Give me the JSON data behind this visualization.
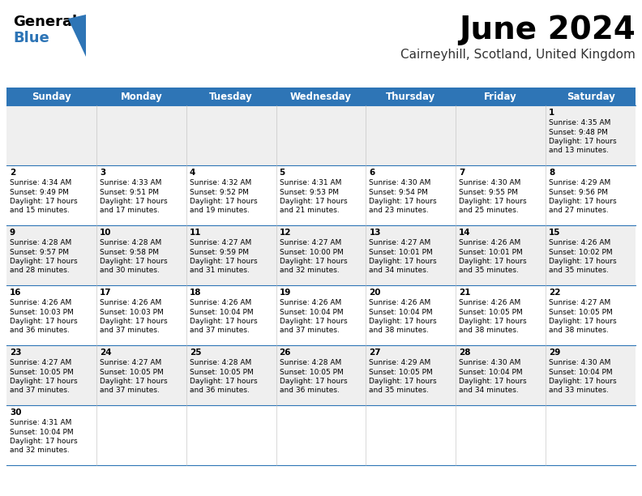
{
  "title": "June 2024",
  "subtitle": "Cairneyhill, Scotland, United Kingdom",
  "days_of_week": [
    "Sunday",
    "Monday",
    "Tuesday",
    "Wednesday",
    "Thursday",
    "Friday",
    "Saturday"
  ],
  "header_bg": "#2E75B6",
  "header_text": "#FFFFFF",
  "row_bg_even": "#EFEFEF",
  "row_bg_odd": "#FFFFFF",
  "border_color": "#2E75B6",
  "text_color": "#000000",
  "calendar_data": [
    [
      null,
      null,
      null,
      null,
      null,
      null,
      {
        "day": "1",
        "sunrise": "4:35 AM",
        "sunset": "9:48 PM",
        "daylight1": "17 hours",
        "daylight2": "and 13 minutes."
      }
    ],
    [
      {
        "day": "2",
        "sunrise": "4:34 AM",
        "sunset": "9:49 PM",
        "daylight1": "17 hours",
        "daylight2": "and 15 minutes."
      },
      {
        "day": "3",
        "sunrise": "4:33 AM",
        "sunset": "9:51 PM",
        "daylight1": "17 hours",
        "daylight2": "and 17 minutes."
      },
      {
        "day": "4",
        "sunrise": "4:32 AM",
        "sunset": "9:52 PM",
        "daylight1": "17 hours",
        "daylight2": "and 19 minutes."
      },
      {
        "day": "5",
        "sunrise": "4:31 AM",
        "sunset": "9:53 PM",
        "daylight1": "17 hours",
        "daylight2": "and 21 minutes."
      },
      {
        "day": "6",
        "sunrise": "4:30 AM",
        "sunset": "9:54 PM",
        "daylight1": "17 hours",
        "daylight2": "and 23 minutes."
      },
      {
        "day": "7",
        "sunrise": "4:30 AM",
        "sunset": "9:55 PM",
        "daylight1": "17 hours",
        "daylight2": "and 25 minutes."
      },
      {
        "day": "8",
        "sunrise": "4:29 AM",
        "sunset": "9:56 PM",
        "daylight1": "17 hours",
        "daylight2": "and 27 minutes."
      }
    ],
    [
      {
        "day": "9",
        "sunrise": "4:28 AM",
        "sunset": "9:57 PM",
        "daylight1": "17 hours",
        "daylight2": "and 28 minutes."
      },
      {
        "day": "10",
        "sunrise": "4:28 AM",
        "sunset": "9:58 PM",
        "daylight1": "17 hours",
        "daylight2": "and 30 minutes."
      },
      {
        "day": "11",
        "sunrise": "4:27 AM",
        "sunset": "9:59 PM",
        "daylight1": "17 hours",
        "daylight2": "and 31 minutes."
      },
      {
        "day": "12",
        "sunrise": "4:27 AM",
        "sunset": "10:00 PM",
        "daylight1": "17 hours",
        "daylight2": "and 32 minutes."
      },
      {
        "day": "13",
        "sunrise": "4:27 AM",
        "sunset": "10:01 PM",
        "daylight1": "17 hours",
        "daylight2": "and 34 minutes."
      },
      {
        "day": "14",
        "sunrise": "4:26 AM",
        "sunset": "10:01 PM",
        "daylight1": "17 hours",
        "daylight2": "and 35 minutes."
      },
      {
        "day": "15",
        "sunrise": "4:26 AM",
        "sunset": "10:02 PM",
        "daylight1": "17 hours",
        "daylight2": "and 35 minutes."
      }
    ],
    [
      {
        "day": "16",
        "sunrise": "4:26 AM",
        "sunset": "10:03 PM",
        "daylight1": "17 hours",
        "daylight2": "and 36 minutes."
      },
      {
        "day": "17",
        "sunrise": "4:26 AM",
        "sunset": "10:03 PM",
        "daylight1": "17 hours",
        "daylight2": "and 37 minutes."
      },
      {
        "day": "18",
        "sunrise": "4:26 AM",
        "sunset": "10:04 PM",
        "daylight1": "17 hours",
        "daylight2": "and 37 minutes."
      },
      {
        "day": "19",
        "sunrise": "4:26 AM",
        "sunset": "10:04 PM",
        "daylight1": "17 hours",
        "daylight2": "and 37 minutes."
      },
      {
        "day": "20",
        "sunrise": "4:26 AM",
        "sunset": "10:04 PM",
        "daylight1": "17 hours",
        "daylight2": "and 38 minutes."
      },
      {
        "day": "21",
        "sunrise": "4:26 AM",
        "sunset": "10:05 PM",
        "daylight1": "17 hours",
        "daylight2": "and 38 minutes."
      },
      {
        "day": "22",
        "sunrise": "4:27 AM",
        "sunset": "10:05 PM",
        "daylight1": "17 hours",
        "daylight2": "and 38 minutes."
      }
    ],
    [
      {
        "day": "23",
        "sunrise": "4:27 AM",
        "sunset": "10:05 PM",
        "daylight1": "17 hours",
        "daylight2": "and 37 minutes."
      },
      {
        "day": "24",
        "sunrise": "4:27 AM",
        "sunset": "10:05 PM",
        "daylight1": "17 hours",
        "daylight2": "and 37 minutes."
      },
      {
        "day": "25",
        "sunrise": "4:28 AM",
        "sunset": "10:05 PM",
        "daylight1": "17 hours",
        "daylight2": "and 36 minutes."
      },
      {
        "day": "26",
        "sunrise": "4:28 AM",
        "sunset": "10:05 PM",
        "daylight1": "17 hours",
        "daylight2": "and 36 minutes."
      },
      {
        "day": "27",
        "sunrise": "4:29 AM",
        "sunset": "10:05 PM",
        "daylight1": "17 hours",
        "daylight2": "and 35 minutes."
      },
      {
        "day": "28",
        "sunrise": "4:30 AM",
        "sunset": "10:04 PM",
        "daylight1": "17 hours",
        "daylight2": "and 34 minutes."
      },
      {
        "day": "29",
        "sunrise": "4:30 AM",
        "sunset": "10:04 PM",
        "daylight1": "17 hours",
        "daylight2": "and 33 minutes."
      }
    ],
    [
      {
        "day": "30",
        "sunrise": "4:31 AM",
        "sunset": "10:04 PM",
        "daylight1": "17 hours",
        "daylight2": "and 32 minutes."
      },
      null,
      null,
      null,
      null,
      null,
      null
    ]
  ]
}
